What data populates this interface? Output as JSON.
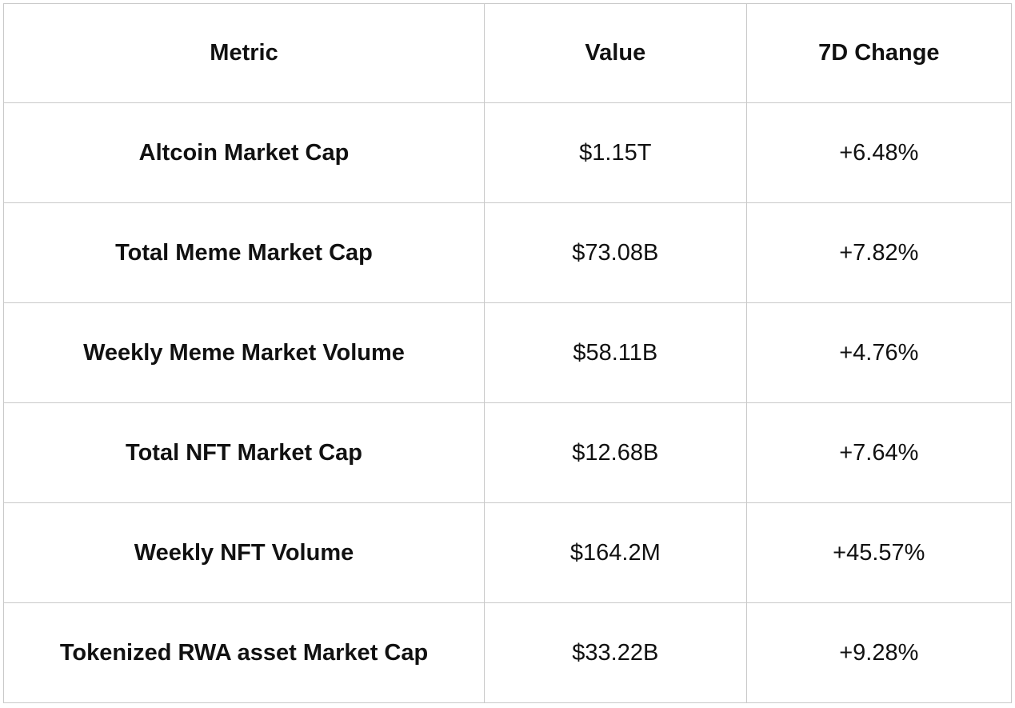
{
  "chart_data": {
    "type": "table",
    "columns": [
      "Metric",
      "Value",
      "7D Change"
    ],
    "rows": [
      [
        "Altcoin Market Cap",
        "$1.15T",
        "+6.48%"
      ],
      [
        "Total Meme Market Cap",
        "$73.08B",
        "+7.82%"
      ],
      [
        "Weekly Meme Market Volume",
        "$58.11B",
        "+4.76%"
      ],
      [
        "Total NFT Market Cap",
        "$12.68B",
        "+7.64%"
      ],
      [
        "Weekly NFT Volume",
        "$164.2M",
        "+45.57%"
      ],
      [
        "Tokenized RWA asset Market Cap",
        "$33.22B",
        "+9.28%"
      ]
    ]
  },
  "colors": {
    "border": "#c9c9c9",
    "text": "#111111",
    "background": "#ffffff"
  }
}
